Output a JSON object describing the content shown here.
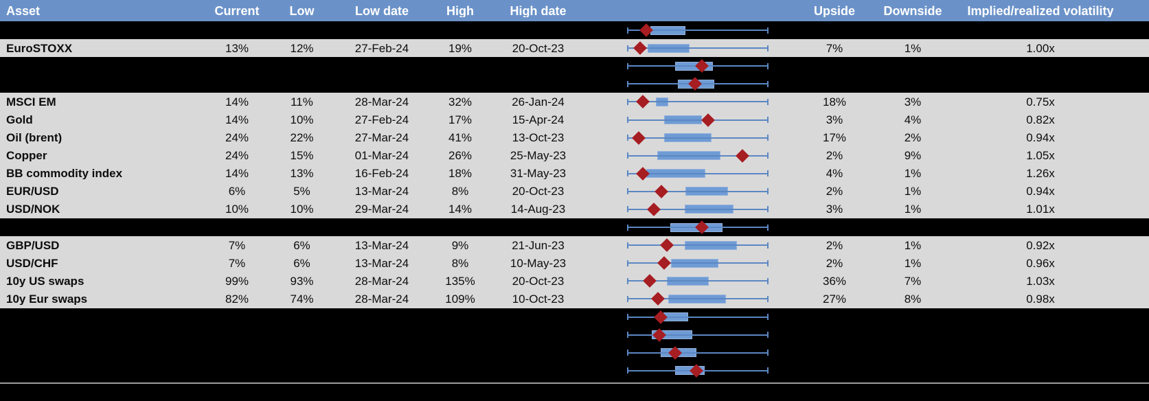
{
  "colors": {
    "header_bg": "#6b92c8",
    "header_text": "#ffffff",
    "row_bg": "#d9d9d9",
    "dark_bg": "#000000",
    "box_fill": "#6f9bd5",
    "box_border": "#93b2dc",
    "whisker": "#5b87c3",
    "diamond": "#a61d22",
    "divider": "#9e9e9e",
    "text": "#0d0d0d"
  },
  "chart_data": {
    "type": "table",
    "description": "Implied volatility table with embedded horizontal box-whisker plots; red diamond marks current level within each asset's low-high range (whisker spans full range, positions normalized 0-1).",
    "columns": [
      "Asset",
      "Current",
      "Low",
      "Low date",
      "High",
      "High date",
      "",
      "Upside",
      "Downside",
      "Implied/realized volatility"
    ],
    "rows": [
      {
        "dark": true,
        "asset": "",
        "current": "",
        "low": "",
        "low_date": "",
        "high": "",
        "high_date": "",
        "upside": "",
        "downside": "",
        "vol": "",
        "plot": {
          "whisker": [
            0,
            1
          ],
          "box": [
            0.16,
            0.41
          ],
          "diamond": 0.13
        }
      },
      {
        "dark": false,
        "asset": "EuroSTOXX",
        "current": "13%",
        "low": "12%",
        "low_date": "27-Feb-24",
        "high": "19%",
        "high_date": "20-Oct-23",
        "upside": "7%",
        "downside": "1%",
        "vol": "1.00x",
        "plot": {
          "whisker": [
            0,
            1
          ],
          "box": [
            0.14,
            0.44
          ],
          "diamond": 0.09
        }
      },
      {
        "dark": true,
        "asset": "",
        "current": "",
        "low": "",
        "low_date": "",
        "high": "",
        "high_date": "",
        "upside": "",
        "downside": "",
        "vol": "",
        "plot": {
          "whisker": [
            0,
            1
          ],
          "box": [
            0.34,
            0.61
          ],
          "diamond": 0.53
        }
      },
      {
        "dark": true,
        "asset": "",
        "current": "",
        "low": "",
        "low_date": "",
        "high": "",
        "high_date": "",
        "upside": "",
        "downside": "",
        "vol": "",
        "plot": {
          "whisker": [
            0,
            1
          ],
          "box": [
            0.36,
            0.62
          ],
          "diamond": 0.48
        }
      },
      {
        "dark": false,
        "asset": "MSCI EM",
        "current": "14%",
        "low": "11%",
        "low_date": "28-Mar-24",
        "high": "32%",
        "high_date": "26-Jan-24",
        "upside": "18%",
        "downside": "3%",
        "vol": "0.75x",
        "plot": {
          "whisker": [
            0,
            1
          ],
          "box": [
            0.2,
            0.29
          ],
          "diamond": 0.11
        }
      },
      {
        "dark": false,
        "asset": "Gold",
        "current": "14%",
        "low": "10%",
        "low_date": "27-Feb-24",
        "high": "17%",
        "high_date": "15-Apr-24",
        "upside": "3%",
        "downside": "4%",
        "vol": "0.82x",
        "plot": {
          "whisker": [
            0,
            1
          ],
          "box": [
            0.26,
            0.53
          ],
          "diamond": 0.575
        }
      },
      {
        "dark": false,
        "asset": "Oil (brent)",
        "current": "24%",
        "low": "22%",
        "low_date": "27-Mar-24",
        "high": "41%",
        "high_date": "13-Oct-23",
        "upside": "17%",
        "downside": "2%",
        "vol": "0.94x",
        "plot": {
          "whisker": [
            0,
            1
          ],
          "box": [
            0.26,
            0.6
          ],
          "diamond": 0.08
        }
      },
      {
        "dark": false,
        "asset": "Copper",
        "current": "24%",
        "low": "15%",
        "low_date": "01-Mar-24",
        "high": "26%",
        "high_date": "25-May-23",
        "upside": "2%",
        "downside": "9%",
        "vol": "1.05x",
        "plot": {
          "whisker": [
            0,
            1
          ],
          "box": [
            0.21,
            0.66
          ],
          "diamond": 0.82
        }
      },
      {
        "dark": false,
        "asset": "BB commodity index",
        "current": "14%",
        "low": "13%",
        "low_date": "16-Feb-24",
        "high": "18%",
        "high_date": "31-May-23",
        "upside": "4%",
        "downside": "1%",
        "vol": "1.26x",
        "plot": {
          "whisker": [
            0,
            1
          ],
          "box": [
            0.13,
            0.555
          ],
          "diamond": 0.11
        }
      },
      {
        "dark": false,
        "asset": "EUR/USD",
        "current": "6%",
        "low": "5%",
        "low_date": "13-Mar-24",
        "high": "8%",
        "high_date": "20-Oct-23",
        "upside": "2%",
        "downside": "1%",
        "vol": "0.94x",
        "plot": {
          "whisker": [
            0,
            1
          ],
          "box": [
            0.41,
            0.715
          ],
          "diamond": 0.24
        }
      },
      {
        "dark": false,
        "asset": "USD/NOK",
        "current": "10%",
        "low": "10%",
        "low_date": "29-Mar-24",
        "high": "14%",
        "high_date": "14-Aug-23",
        "upside": "3%",
        "downside": "1%",
        "vol": "1.01x",
        "plot": {
          "whisker": [
            0,
            1
          ],
          "box": [
            0.405,
            0.755
          ],
          "diamond": 0.185
        }
      },
      {
        "dark": true,
        "asset": "",
        "current": "",
        "low": "",
        "low_date": "",
        "high": "",
        "high_date": "",
        "upside": "",
        "downside": "",
        "vol": "",
        "plot": {
          "whisker": [
            0,
            1
          ],
          "box": [
            0.305,
            0.675
          ],
          "diamond": 0.53
        }
      },
      {
        "dark": false,
        "asset": "GBP/USD",
        "current": "7%",
        "low": "6%",
        "low_date": "13-Mar-24",
        "high": "9%",
        "high_date": "21-Jun-23",
        "upside": "2%",
        "downside": "1%",
        "vol": "0.92x",
        "plot": {
          "whisker": [
            0,
            1
          ],
          "box": [
            0.405,
            0.78
          ],
          "diamond": 0.28
        }
      },
      {
        "dark": false,
        "asset": "USD/CHF",
        "current": "7%",
        "low": "6%",
        "low_date": "13-Mar-24",
        "high": "8%",
        "high_date": "10-May-23",
        "upside": "2%",
        "downside": "1%",
        "vol": "0.96x",
        "plot": {
          "whisker": [
            0,
            1
          ],
          "box": [
            0.31,
            0.645
          ],
          "diamond": 0.26
        }
      },
      {
        "dark": false,
        "asset": "10y US swaps",
        "current": "99%",
        "low": "93%",
        "low_date": "28-Mar-24",
        "high": "135%",
        "high_date": "20-Oct-23",
        "upside": "36%",
        "downside": "7%",
        "vol": "1.03x",
        "plot": {
          "whisker": [
            0,
            1
          ],
          "box": [
            0.28,
            0.58
          ],
          "diamond": 0.155
        }
      },
      {
        "dark": false,
        "asset": "10y Eur swaps",
        "current": "82%",
        "low": "74%",
        "low_date": "28-Mar-24",
        "high": "109%",
        "high_date": "10-Oct-23",
        "upside": "27%",
        "downside": "8%",
        "vol": "0.98x",
        "plot": {
          "whisker": [
            0,
            1
          ],
          "box": [
            0.29,
            0.7
          ],
          "diamond": 0.216
        }
      },
      {
        "dark": true,
        "asset": "",
        "current": "",
        "low": "",
        "low_date": "",
        "high": "",
        "high_date": "",
        "upside": "",
        "downside": "",
        "vol": "",
        "plot": {
          "whisker": [
            0,
            1
          ],
          "box": [
            0.255,
            0.43
          ],
          "diamond": 0.236
        }
      },
      {
        "dark": true,
        "asset": "",
        "current": "",
        "low": "",
        "low_date": "",
        "high": "",
        "high_date": "",
        "upside": "",
        "downside": "",
        "vol": "",
        "plot": {
          "whisker": [
            0,
            1
          ],
          "box": [
            0.17,
            0.46
          ],
          "diamond": 0.225
        }
      },
      {
        "dark": true,
        "asset": "",
        "current": "",
        "low": "",
        "low_date": "",
        "high": "",
        "high_date": "",
        "upside": "",
        "downside": "",
        "vol": "",
        "plot": {
          "whisker": [
            0,
            1
          ],
          "box": [
            0.235,
            0.49
          ],
          "diamond": 0.34
        }
      },
      {
        "dark": true,
        "asset": "",
        "current": "",
        "low": "",
        "low_date": "",
        "high": "",
        "high_date": "",
        "upside": "",
        "downside": "",
        "vol": "",
        "plot": {
          "whisker": [
            0,
            1
          ],
          "box": [
            0.34,
            0.55
          ],
          "diamond": 0.49
        }
      }
    ]
  }
}
